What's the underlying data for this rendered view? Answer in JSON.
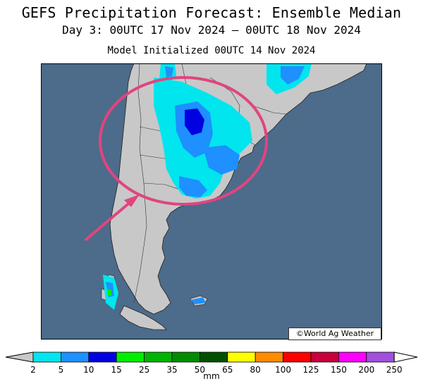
{
  "header": {
    "title": "GEFS Precipitation Forecast: Ensemble Median",
    "valid_period": "Day 3: 00UTC 17 Nov 2024 — 00UTC 18 Nov 2024",
    "init": "Model Initialized 00UTC 14 Nov 2024"
  },
  "map": {
    "credit": "©World Ag Weather",
    "ocean_color": "#4d6b8a",
    "land_color": "#c8c8c8",
    "highlight_color": "#e0457f"
  },
  "legend": {
    "unit": "mm",
    "labels": [
      "2",
      "5",
      "10",
      "15",
      "25",
      "35",
      "50",
      "65",
      "80",
      "100",
      "125",
      "150",
      "200",
      "250"
    ],
    "colors": [
      "#00e5ee",
      "#1e90ff",
      "#0000e0",
      "#00ee00",
      "#00b400",
      "#008c00",
      "#005000",
      "#ffff00",
      "#ff8c00",
      "#ff0000",
      "#c8003c",
      "#ff00ff",
      "#a050dc"
    ],
    "under_color": "#c8c8c8",
    "over_color": "#ffffff"
  }
}
